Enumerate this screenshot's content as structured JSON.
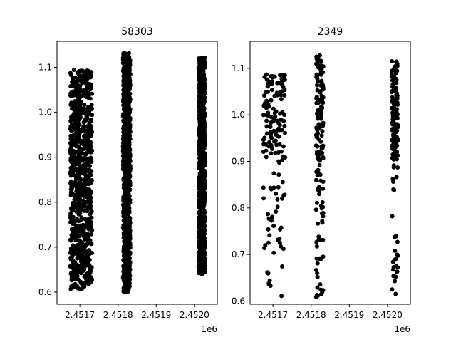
{
  "chart_data": [
    {
      "type": "scatter",
      "title": "58303",
      "xlabel": "",
      "ylabel": "",
      "x_offset_label": "1e6",
      "xlim": [
        2.45164,
        2.45206
      ],
      "ylim": [
        0.573,
        1.158
      ],
      "x_ticks": [
        2.4517,
        2.4518,
        2.4519,
        2.452
      ],
      "x_tick_labels": [
        "2.4517",
        "2.4518",
        "2.4519",
        "2.4520"
      ],
      "y_ticks": [
        0.6,
        0.7,
        0.8,
        0.9,
        1.0,
        1.1
      ],
      "y_tick_labels": [
        "0.6",
        "0.7",
        "0.8",
        "0.9",
        "1.0",
        "1.1"
      ],
      "marker_color": "#000000",
      "clusters": [
        {
          "x_range": [
            2.451675,
            2.451732
          ],
          "y_range": [
            0.605,
            1.095
          ]
        },
        {
          "x_range": [
            2.451813,
            2.451832
          ],
          "y_range": [
            0.6,
            1.133
          ]
        },
        {
          "x_range": [
            2.452011,
            2.452028
          ],
          "y_range": [
            0.64,
            1.122
          ]
        }
      ],
      "series": [
        {
          "values": []
        }
      ]
    },
    {
      "type": "scatter",
      "title": "2349",
      "xlabel": "",
      "ylabel": "",
      "x_offset_label": "1e6",
      "xlim": [
        2.45164,
        2.45206
      ],
      "ylim": [
        0.593,
        1.158
      ],
      "x_ticks": [
        2.4517,
        2.4518,
        2.4519,
        2.452
      ],
      "x_tick_labels": [
        "2.4517",
        "2.4518",
        "2.4519",
        "2.4520"
      ],
      "y_ticks": [
        0.6,
        0.7,
        0.8,
        0.9,
        1.0,
        1.1
      ],
      "y_tick_labels": [
        "0.6",
        "0.7",
        "0.8",
        "0.9",
        "1.0",
        "1.1"
      ],
      "marker_color": "#000000",
      "clusters": [
        {
          "x_range": [
            2.451675,
            2.451732
          ],
          "y_range": [
            0.608,
            1.09
          ]
        },
        {
          "x_range": [
            2.451813,
            2.451832
          ],
          "y_range": [
            0.605,
            1.13
          ]
        },
        {
          "x_range": [
            2.452011,
            2.452028
          ],
          "y_range": [
            0.615,
            1.12
          ]
        }
      ],
      "series": [
        {
          "values": []
        }
      ]
    }
  ]
}
